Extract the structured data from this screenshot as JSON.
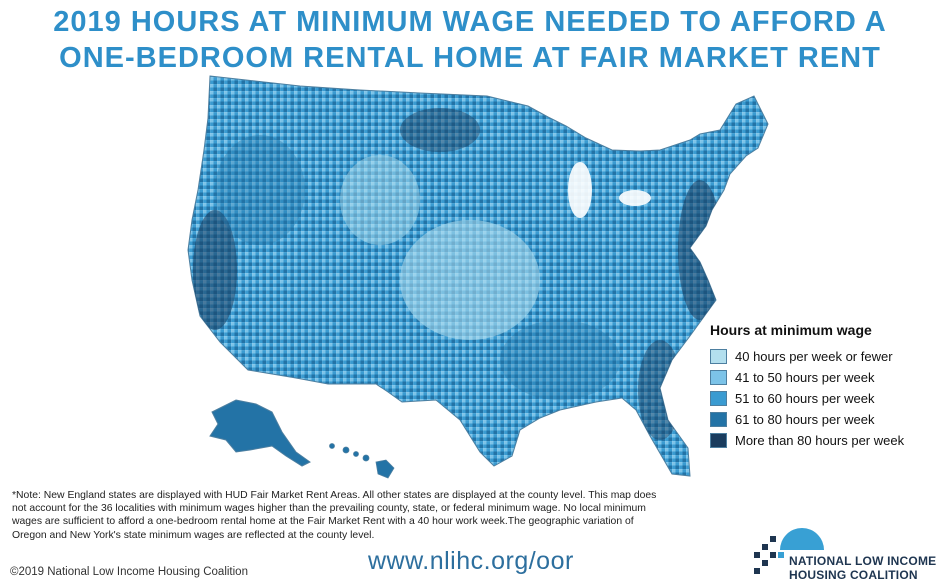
{
  "title": {
    "line1": "2019 HOURS AT MINIMUM WAGE NEEDED TO AFFORD A",
    "line2": "ONE-BEDROOM RENTAL HOME AT FAIR MARKET RENT"
  },
  "legend": {
    "title": "Hours at minimum wage",
    "items": [
      {
        "label": "40 hours per week or fewer",
        "color": "#b3dfee"
      },
      {
        "label": "41 to 50 hours per week",
        "color": "#7cc3e8"
      },
      {
        "label": "51 to 60 hours per week",
        "color": "#3a9bd1"
      },
      {
        "label": "61 to 80 hours per week",
        "color": "#2373a6"
      },
      {
        "label": "More than 80 hours per week",
        "color": "#1a3c5e"
      }
    ]
  },
  "note": "*Note: New England states are displayed with HUD Fair Market Rent Areas. All other states are displayed at the county level. This map does not account for the 36 localities with minimum wages higher than the prevailing county, state, or federal minimum wage. No local minimum wages are sufficient to afford a one-bedroom rental home at the Fair Market Rent with a 40 hour work week.The geographic variation of Oregon and New York's state minimum wages are reflected at the county level.",
  "footer": {
    "copyright": "©2019 National Low Income Housing Coalition",
    "url": "www.nlihc.org/oor",
    "org_line1": "NATIONAL LOW INCOME",
    "org_line2": "HOUSING COALITION"
  },
  "map_regions": [
    "Contiguous United States",
    "Alaska",
    "Hawaii"
  ],
  "colors": {
    "title": "#2e8fc9",
    "url": "#2d6f9e",
    "org": "#1e3550"
  }
}
